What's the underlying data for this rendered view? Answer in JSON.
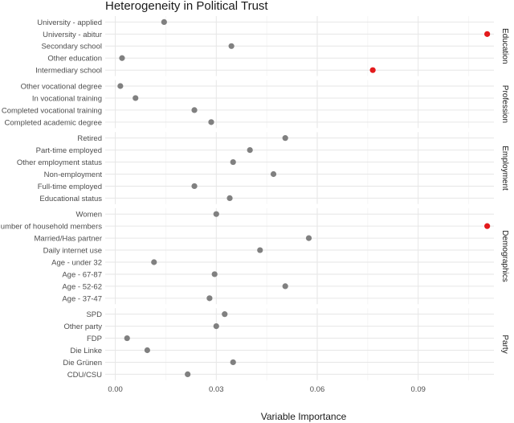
{
  "chart_data": {
    "type": "scatter",
    "title": "Heterogeneity in Political Trust",
    "xlabel": "Variable Importance",
    "xlim": [
      -0.003,
      0.1125
    ],
    "xticks": [
      0.0,
      0.03,
      0.06,
      0.09
    ],
    "xtick_labels": [
      "0.00",
      "0.03",
      "0.06",
      "0.09"
    ],
    "grid": true,
    "colors": {
      "normal": "#808080",
      "highlight": "#e31a1c"
    },
    "panels": [
      {
        "name": "Education",
        "points": [
          {
            "label": "University - applied",
            "value": 0.0145,
            "highlight": false
          },
          {
            "label": "University - abitur",
            "value": 0.1105,
            "highlight": true
          },
          {
            "label": "Secondary school",
            "value": 0.0345,
            "highlight": false
          },
          {
            "label": "Other education",
            "value": 0.002,
            "highlight": false
          },
          {
            "label": "Intermediary school",
            "value": 0.0765,
            "highlight": true
          }
        ]
      },
      {
        "name": "Profession",
        "points": [
          {
            "label": "Other vocational degree",
            "value": 0.0015,
            "highlight": false
          },
          {
            "label": "In vocational training",
            "value": 0.006,
            "highlight": false
          },
          {
            "label": "Completed vocational training",
            "value": 0.0235,
            "highlight": false
          },
          {
            "label": "Completed academic degree",
            "value": 0.0285,
            "highlight": false
          }
        ]
      },
      {
        "name": "Employment",
        "points": [
          {
            "label": "Retired",
            "value": 0.0505,
            "highlight": false
          },
          {
            "label": "Part-time employed",
            "value": 0.04,
            "highlight": false
          },
          {
            "label": "Other employment status",
            "value": 0.035,
            "highlight": false
          },
          {
            "label": "Non-employment",
            "value": 0.047,
            "highlight": false
          },
          {
            "label": "Full-time employed",
            "value": 0.0235,
            "highlight": false
          },
          {
            "label": "Educational status",
            "value": 0.034,
            "highlight": false
          }
        ]
      },
      {
        "name": "Demographics",
        "points": [
          {
            "label": "Women",
            "value": 0.03,
            "highlight": false
          },
          {
            "label": "Number of household members",
            "value": 0.1105,
            "highlight": true
          },
          {
            "label": "Married/Has partner",
            "value": 0.0575,
            "highlight": false
          },
          {
            "label": "Daily internet use",
            "value": 0.043,
            "highlight": false
          },
          {
            "label": "Age - under 32",
            "value": 0.0115,
            "highlight": false
          },
          {
            "label": "Age - 67-87",
            "value": 0.0295,
            "highlight": false
          },
          {
            "label": "Age - 52-62",
            "value": 0.0505,
            "highlight": false
          },
          {
            "label": "Age  - 37-47",
            "value": 0.028,
            "highlight": false
          }
        ]
      },
      {
        "name": "Party",
        "points": [
          {
            "label": "SPD",
            "value": 0.0325,
            "highlight": false
          },
          {
            "label": "Other party",
            "value": 0.03,
            "highlight": false
          },
          {
            "label": "FDP",
            "value": 0.0035,
            "highlight": false
          },
          {
            "label": "Die Linke",
            "value": 0.0095,
            "highlight": false
          },
          {
            "label": "Die Grünen",
            "value": 0.035,
            "highlight": false
          },
          {
            "label": "CDU/CSU",
            "value": 0.0215,
            "highlight": false
          }
        ]
      }
    ]
  }
}
